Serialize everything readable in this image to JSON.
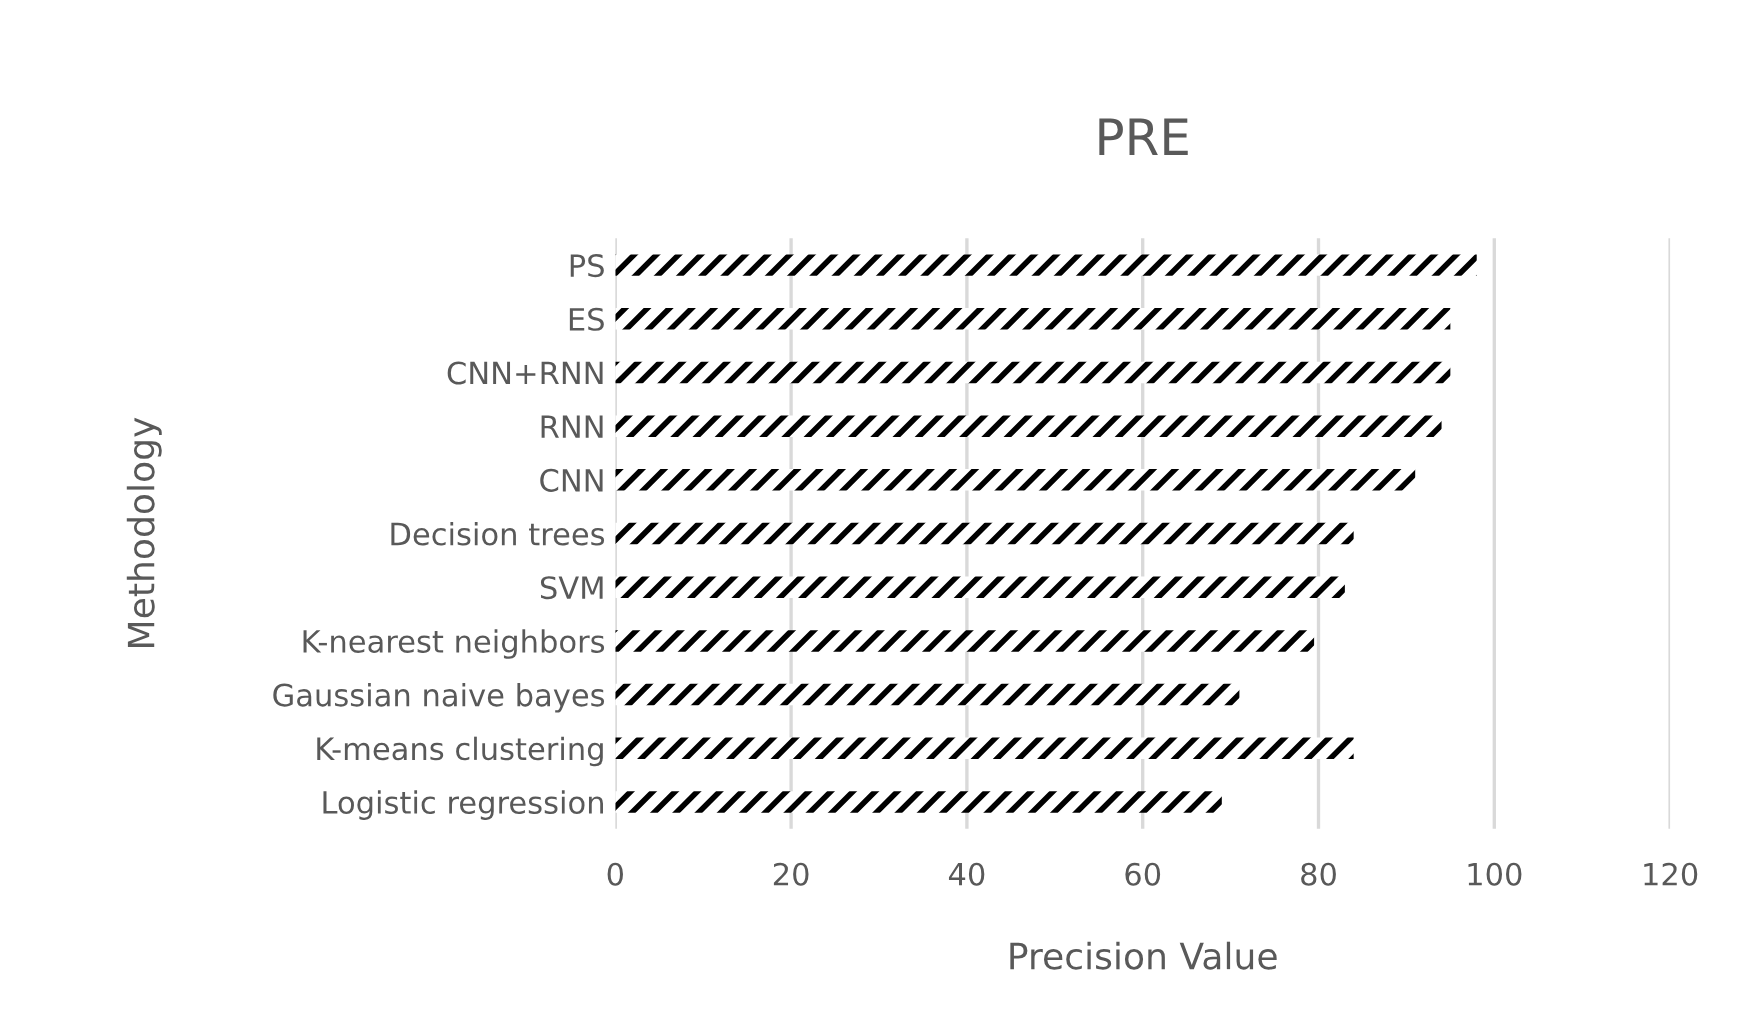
{
  "chart_data": {
    "type": "bar",
    "orientation": "horizontal",
    "title": "PRE",
    "xlabel": "Precision Value",
    "ylabel": "Methodology",
    "categories": [
      "PS",
      "ES",
      "CNN+RNN",
      "RNN",
      "CNN",
      "Decision trees",
      "SVM",
      "K-nearest neighbors",
      "Gaussian naive bayes",
      "K-means clustering",
      "Logistic regression"
    ],
    "values": [
      98,
      95,
      95,
      94,
      91,
      84,
      83,
      79.5,
      71,
      84,
      69
    ],
    "color": "#000000",
    "xlim": [
      0,
      120
    ],
    "xticks": [
      0,
      20,
      40,
      60,
      80,
      100,
      120
    ],
    "grid": "x",
    "legend": false
  }
}
